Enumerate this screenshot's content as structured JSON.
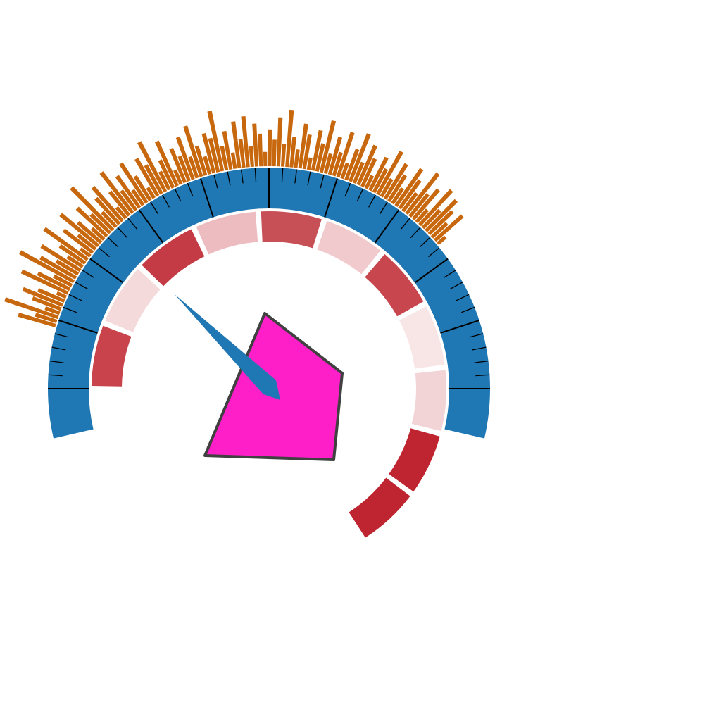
{
  "chart_data": {
    "type": "gauge",
    "title": "",
    "scale": {
      "color": "#1f77b4",
      "tick_color": "#000000",
      "major_ticks": 11,
      "minor_per_major": 5
    },
    "needle": {
      "value": 0.32,
      "color": "#1f77b4"
    },
    "segments": [
      {
        "value": 1,
        "color": "#c8434b"
      },
      {
        "value": 1,
        "color": "#f5dadc"
      },
      {
        "value": 1,
        "color": "#c43a45"
      },
      {
        "value": 1,
        "color": "#edbcc0"
      },
      {
        "value": 1,
        "color": "#c74f56"
      },
      {
        "value": 1,
        "color": "#f1cacd"
      },
      {
        "value": 1,
        "color": "#c8464e"
      },
      {
        "value": 1,
        "color": "#f8e5e6"
      },
      {
        "value": 1,
        "color": "#f2d4d6"
      },
      {
        "value": 1,
        "color": "#be2530"
      },
      {
        "value": 1,
        "color": "#be2530"
      }
    ],
    "outer_bars": {
      "color": "#c8680e",
      "values": [
        0.38,
        0.22,
        0.55,
        0.15,
        0.3,
        0.42,
        0.28,
        0.1,
        0.5,
        0.35,
        0.2,
        0.6,
        0.4,
        0.25,
        0.45,
        0.18,
        0.3,
        0.52,
        0.12,
        0.36,
        0.22,
        0.48,
        0.3,
        0.16,
        0.4,
        0.26,
        0.58,
        0.2,
        0.34,
        0.44,
        0.14,
        0.3,
        0.5,
        0.24,
        0.38,
        0.18,
        0.46,
        0.28,
        0.12,
        0.42,
        0.32,
        0.55,
        0.2,
        0.3,
        0.48,
        0.15,
        0.36,
        0.26,
        0.44,
        0.22,
        0.52,
        0.3,
        0.18,
        0.4,
        0.34,
        0.6,
        0.24,
        0.38,
        0.16,
        0.46,
        0.28,
        0.5,
        0.2,
        0.42,
        0.32,
        0.14,
        0.36,
        0.26,
        0.48,
        0.22,
        0.56,
        0.3,
        0.18,
        0.44,
        0.34,
        0.12,
        0.4,
        0.28,
        0.52,
        0.2,
        0.38,
        0.24,
        0.46,
        0.16,
        0.32,
        0.5,
        0.22,
        0.42,
        0.3,
        0.14,
        0.36,
        0.26,
        0.48,
        0.2,
        0.4,
        0.3,
        0.18,
        0.44,
        0.34,
        0.22,
        0.5,
        0.28,
        0.38,
        0.16,
        0.46,
        0.24,
        0.42,
        0.32,
        0.2,
        0.36,
        0.1
      ]
    },
    "marker": {
      "shape": "polygon",
      "color": "#ff1fc8",
      "stroke": "#404040"
    }
  }
}
